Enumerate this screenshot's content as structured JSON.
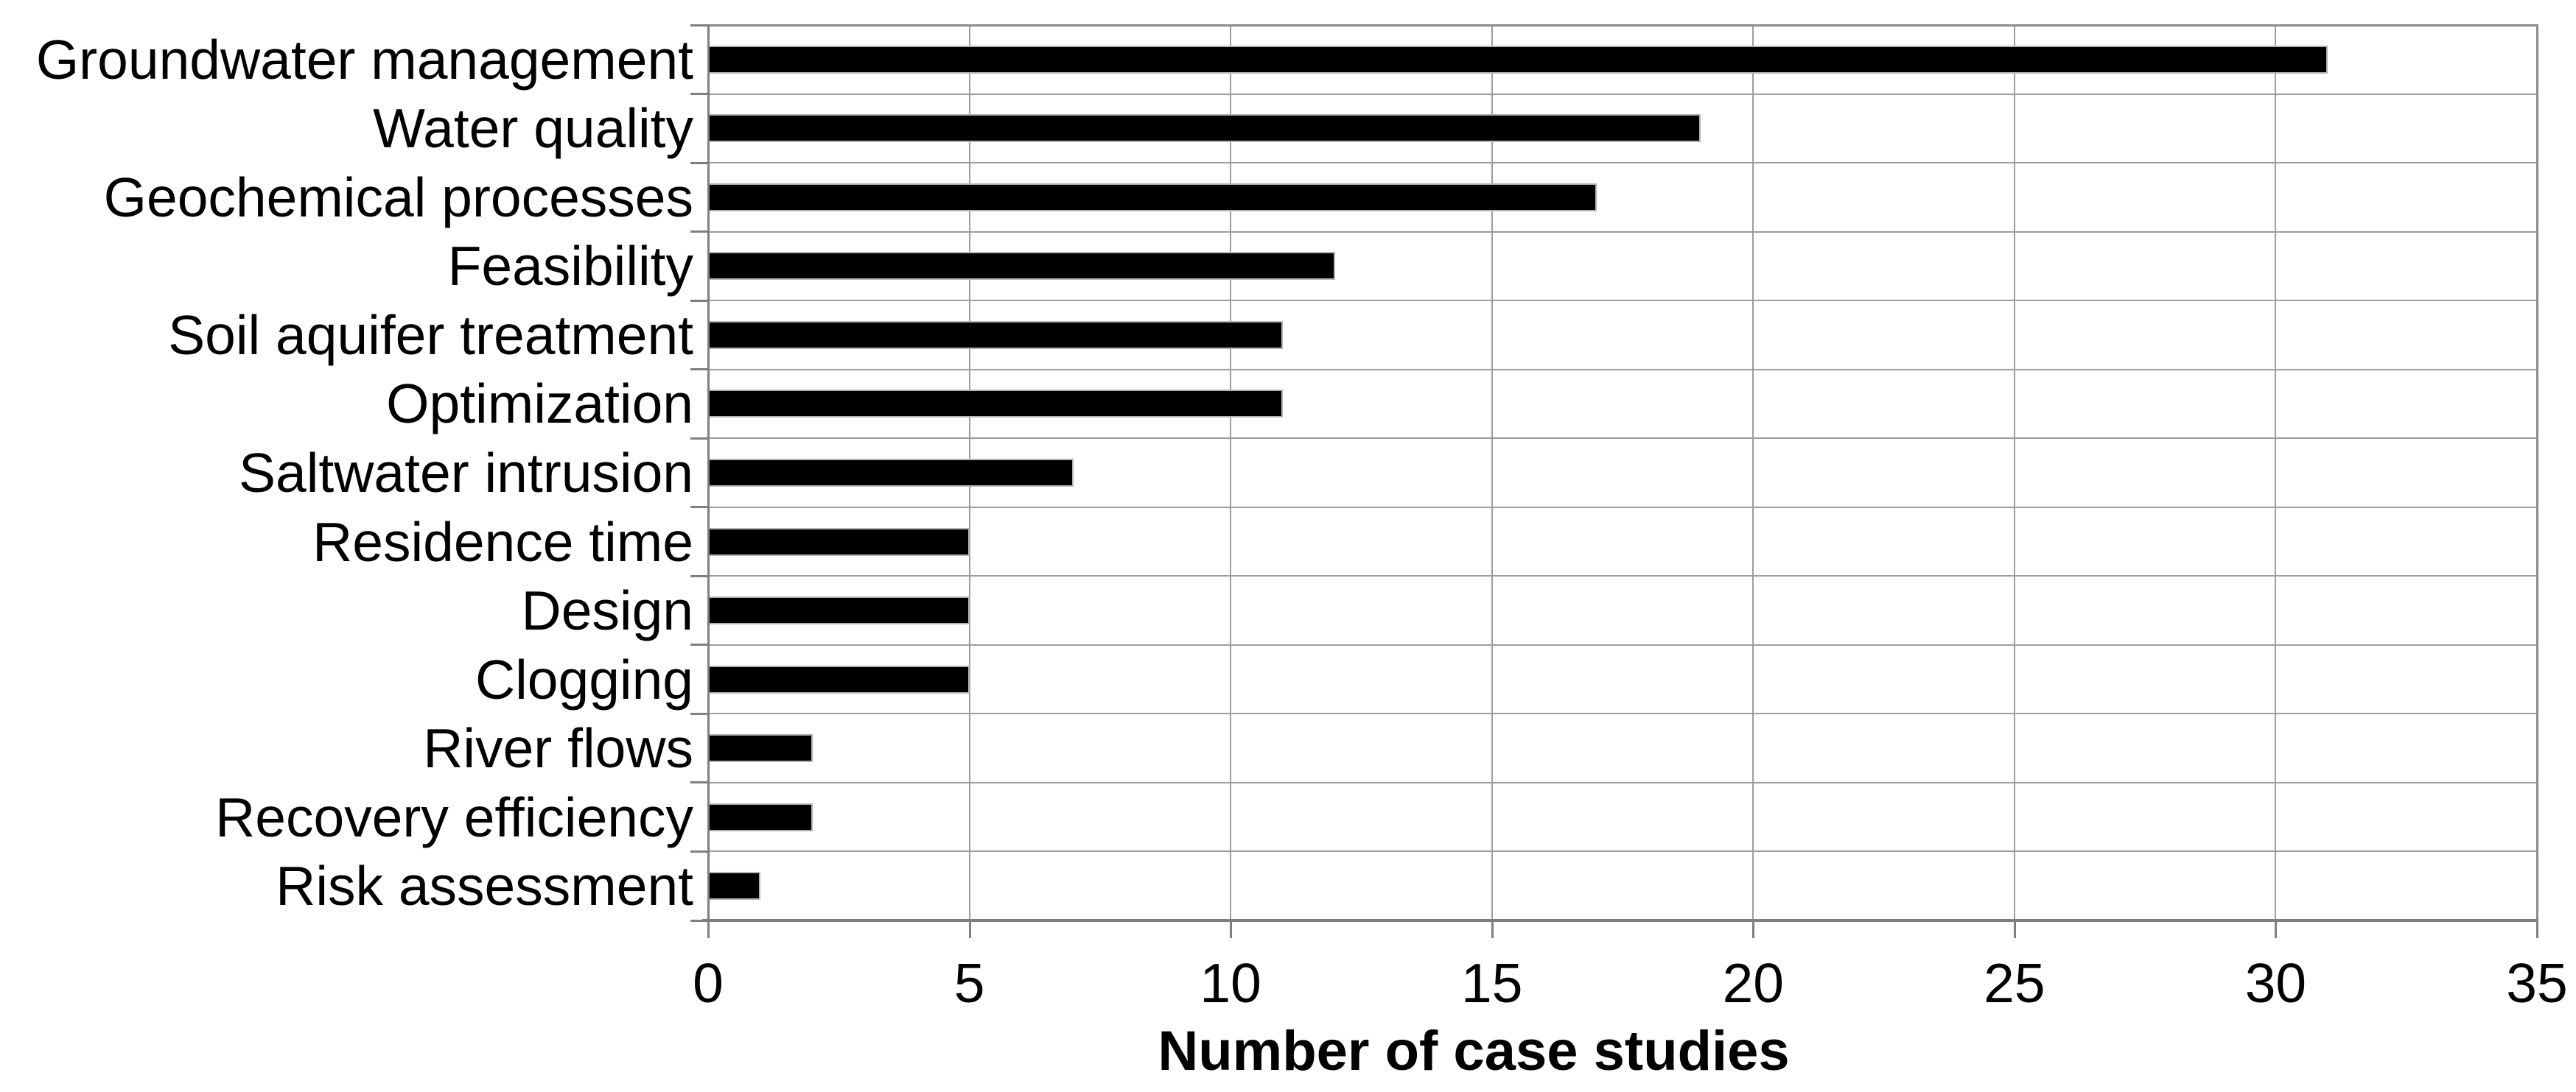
{
  "chart_data": {
    "type": "bar",
    "orientation": "horizontal",
    "title": "",
    "xlabel": "Number of case studies",
    "ylabel": "",
    "categories": [
      "Groundwater management",
      "Water quality",
      "Geochemical processes",
      "Feasibility",
      "Soil aquifer treatment",
      "Optimization",
      "Saltwater intrusion",
      "Residence time",
      "Design",
      "Clogging",
      "River flows",
      "Recovery efficiency",
      "Risk assessment"
    ],
    "values": [
      31,
      19,
      17,
      12,
      11,
      11,
      7,
      5,
      5,
      5,
      2,
      2,
      1
    ],
    "xlim": [
      0,
      35
    ],
    "x_ticks": [
      0,
      5,
      10,
      15,
      20,
      25,
      30,
      35
    ],
    "grid": true,
    "legend": "none",
    "colors": {
      "bar_fill": "#000000",
      "bar_border": "#b3b3b3",
      "gridline": "#9d9d9d",
      "axis": "#7f7f7f",
      "frame": "#8c8c8c",
      "text": "#000000",
      "background": "#ffffff"
    }
  }
}
